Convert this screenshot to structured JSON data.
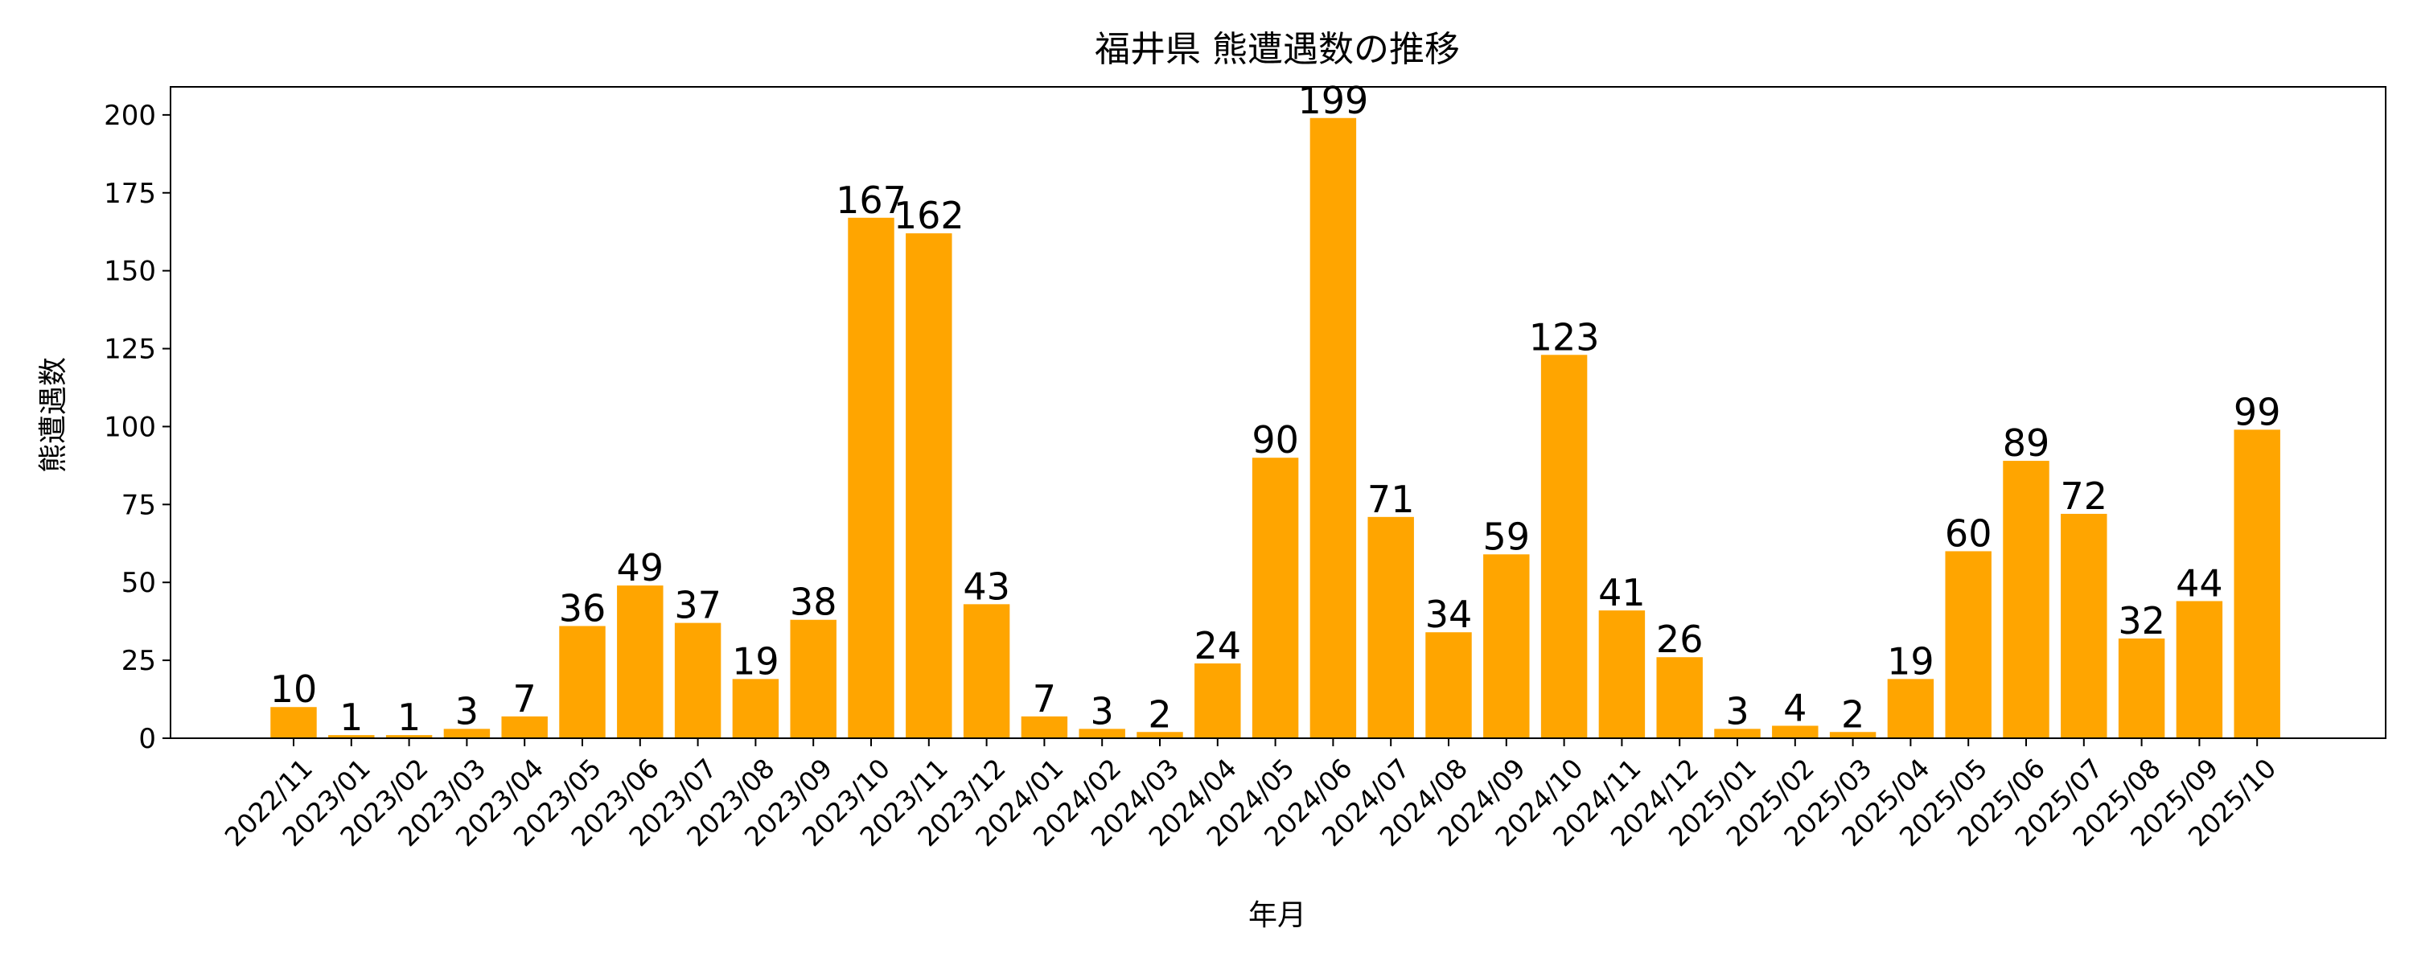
{
  "chart_data": {
    "type": "bar",
    "title": "福井県 熊遭遇数の推移",
    "xlabel": "年月",
    "ylabel": "熊遭遇数",
    "ylim": [
      0,
      209
    ],
    "yticks": [
      0,
      25,
      50,
      75,
      100,
      125,
      150,
      175,
      200
    ],
    "grid": false,
    "bar_color": "#ffa500",
    "categories": [
      "2022/11",
      "2023/01",
      "2023/02",
      "2023/03",
      "2023/04",
      "2023/05",
      "2023/06",
      "2023/07",
      "2023/08",
      "2023/09",
      "2023/10",
      "2023/11",
      "2023/12",
      "2024/01",
      "2024/02",
      "2024/03",
      "2024/04",
      "2024/05",
      "2024/06",
      "2024/07",
      "2024/08",
      "2024/09",
      "2024/10",
      "2024/11",
      "2024/12",
      "2025/01",
      "2025/02",
      "2025/03",
      "2025/04",
      "2025/05",
      "2025/06",
      "2025/07",
      "2025/08",
      "2025/09",
      "2025/10"
    ],
    "values": [
      10,
      1,
      1,
      3,
      7,
      36,
      49,
      37,
      19,
      38,
      167,
      162,
      43,
      7,
      3,
      2,
      24,
      90,
      199,
      71,
      34,
      59,
      123,
      41,
      26,
      3,
      4,
      2,
      19,
      60,
      89,
      72,
      32,
      44,
      99
    ]
  }
}
